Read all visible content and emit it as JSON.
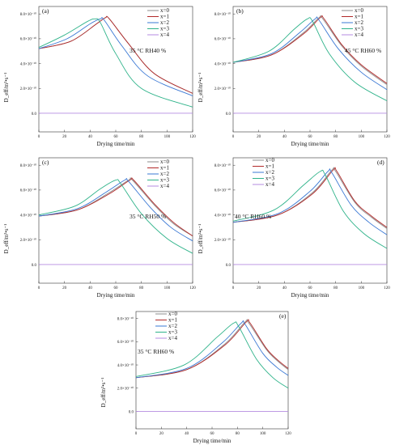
{
  "figure": {
    "x_tick_labels": [
      "0",
      "20",
      "40",
      "60",
      "80",
      "100",
      "120"
    ],
    "y_tick_labels": [
      "0.0",
      "2.0×10⁻¹⁰",
      "4.0×10⁻¹⁰",
      "6.0×10⁻¹⁰",
      "8.0×10⁻¹⁰"
    ],
    "xlabel": "Drying time/min",
    "ylabel": "D_eff/m²•s⁻¹",
    "legend_labels": [
      "x=0",
      "x=1",
      "x=2",
      "x=3",
      "x=4"
    ],
    "series_colors": [
      "#8c8c8c",
      "#b22a2a",
      "#3a78d4",
      "#2fb38a",
      "#b58be0"
    ]
  },
  "chart_data": [
    {
      "panel": "(a)",
      "type": "line",
      "condition": "35 °C RH40 %",
      "xlabel": "Drying time/min",
      "ylabel": "D_eff/m²•s⁻¹",
      "xlim": [
        0,
        120
      ],
      "ylim": [
        -1.5e-10,
        8.6e-10
      ],
      "legend_position": "top-right",
      "series": [
        {
          "name": "x=0",
          "x": [
            0,
            25,
            45,
            52,
            55,
            70,
            90,
            120
          ],
          "y": [
            5.2e-10,
            5.8e-10,
            7.2e-10,
            7.7e-10,
            7.6e-10,
            5.6e-10,
            3.2e-10,
            1.6e-10
          ]
        },
        {
          "name": "x=1",
          "x": [
            0,
            25,
            45,
            52,
            55,
            70,
            90,
            120
          ],
          "y": [
            5.2e-10,
            5.8e-10,
            7.2e-10,
            7.7e-10,
            7.6e-10,
            5.6e-10,
            3.2e-10,
            1.6e-10
          ]
        },
        {
          "name": "x=2",
          "x": [
            0,
            22,
            40,
            48,
            51,
            65,
            85,
            120
          ],
          "y": [
            5.2e-10,
            6e-10,
            7.2e-10,
            7.6e-10,
            7.5e-10,
            5.4e-10,
            3e-10,
            1.4e-10
          ]
        },
        {
          "name": "x=3",
          "x": [
            0,
            20,
            38,
            44,
            48,
            60,
            80,
            120
          ],
          "y": [
            5.3e-10,
            6.3e-10,
            7.4e-10,
            7.6e-10,
            7.3e-10,
            4.8e-10,
            2e-10,
            5e-11
          ]
        },
        {
          "name": "x=4",
          "x": [
            0,
            120
          ],
          "y": [
            0,
            0
          ]
        }
      ]
    },
    {
      "panel": "(b)",
      "type": "line",
      "condition": "45 °C RH60 %",
      "xlabel": "Drying time/min",
      "ylabel": "D_eff/m²•s⁻¹",
      "xlim": [
        0,
        120
      ],
      "ylim": [
        -1.5e-10,
        8.6e-10
      ],
      "legend_position": "top-right",
      "series": [
        {
          "name": "x=0",
          "x": [
            0,
            30,
            55,
            67,
            70,
            85,
            100,
            120
          ],
          "y": [
            4.1e-10,
            4.7e-10,
            6.5e-10,
            7.7e-10,
            7.6e-10,
            5.4e-10,
            3.8e-10,
            2.3e-10
          ]
        },
        {
          "name": "x=1",
          "x": [
            0,
            30,
            55,
            68,
            71,
            85,
            100,
            120
          ],
          "y": [
            4.1e-10,
            4.7e-10,
            6.4e-10,
            7.7e-10,
            7.6e-10,
            5.5e-10,
            3.9e-10,
            2.4e-10
          ]
        },
        {
          "name": "x=2",
          "x": [
            0,
            30,
            52,
            64,
            67,
            82,
            100,
            120
          ],
          "y": [
            4.1e-10,
            4.8e-10,
            6.5e-10,
            7.6e-10,
            7.5e-10,
            5.2e-10,
            3.3e-10,
            1.9e-10
          ]
        },
        {
          "name": "x=3",
          "x": [
            0,
            28,
            48,
            58,
            62,
            75,
            95,
            120
          ],
          "y": [
            4.1e-10,
            5e-10,
            6.8e-10,
            7.6e-10,
            7.4e-10,
            4.8e-10,
            2.5e-10,
            1e-10
          ]
        },
        {
          "name": "x=4",
          "x": [
            0,
            120
          ],
          "y": [
            0,
            0
          ]
        }
      ]
    },
    {
      "panel": "(c)",
      "type": "line",
      "condition": "35 °C RH50 %",
      "xlabel": "Drying time/min",
      "ylabel": "D_eff/m²•s⁻¹",
      "xlim": [
        0,
        120
      ],
      "ylim": [
        -1.5e-10,
        8.6e-10
      ],
      "legend_position": "top-right",
      "series": [
        {
          "name": "x=0",
          "x": [
            0,
            30,
            55,
            70,
            73,
            90,
            105,
            120
          ],
          "y": [
            3.9e-10,
            4.4e-10,
            5.8e-10,
            6.8e-10,
            6.8e-10,
            4.8e-10,
            3.3e-10,
            2.3e-10
          ]
        },
        {
          "name": "x=1",
          "x": [
            0,
            30,
            55,
            71,
            74,
            90,
            105,
            120
          ],
          "y": [
            3.9e-10,
            4.4e-10,
            5.7e-10,
            6.8e-10,
            6.8e-10,
            4.9e-10,
            3.4e-10,
            2.3e-10
          ]
        },
        {
          "name": "x=2",
          "x": [
            0,
            30,
            52,
            67,
            70,
            87,
            103,
            120
          ],
          "y": [
            3.9e-10,
            4.5e-10,
            5.8e-10,
            6.8e-10,
            6.7e-10,
            4.6e-10,
            3e-10,
            1.9e-10
          ]
        },
        {
          "name": "x=3",
          "x": [
            0,
            28,
            48,
            60,
            64,
            80,
            100,
            120
          ],
          "y": [
            4e-10,
            4.7e-10,
            6.1e-10,
            6.8e-10,
            6.5e-10,
            4.1e-10,
            2.1e-10,
            9e-11
          ]
        },
        {
          "name": "x=4",
          "x": [
            0,
            120
          ],
          "y": [
            0,
            0
          ]
        }
      ]
    },
    {
      "panel": "(d)",
      "type": "line",
      "condition": "40 °C RH60 %",
      "xlabel": "Drying time/min",
      "ylabel": "D_eff/m²•s⁻¹",
      "xlim": [
        0,
        120
      ],
      "ylim": [
        -1.5e-10,
        8.6e-10
      ],
      "legend_position": "top-left",
      "series": [
        {
          "name": "x=0",
          "x": [
            0,
            35,
            62,
            77,
            80,
            95,
            108,
            120
          ],
          "y": [
            3.4e-10,
            4e-10,
            5.8e-10,
            7.6e-10,
            7.5e-10,
            5e-10,
            3.8e-10,
            2.9e-10
          ]
        },
        {
          "name": "x=1",
          "x": [
            0,
            35,
            62,
            78,
            81,
            95,
            108,
            120
          ],
          "y": [
            3.4e-10,
            4e-10,
            5.7e-10,
            7.6e-10,
            7.5e-10,
            5.1e-10,
            3.9e-10,
            3e-10
          ]
        },
        {
          "name": "x=2",
          "x": [
            0,
            35,
            60,
            74,
            77,
            92,
            106,
            120
          ],
          "y": [
            3.4e-10,
            4.1e-10,
            5.9e-10,
            7.5e-10,
            7.4e-10,
            4.8e-10,
            3.4e-10,
            2.4e-10
          ]
        },
        {
          "name": "x=3",
          "x": [
            0,
            32,
            55,
            68,
            72,
            86,
            102,
            120
          ],
          "y": [
            3.5e-10,
            4.4e-10,
            6.4e-10,
            7.5e-10,
            7.2e-10,
            4.3e-10,
            2.5e-10,
            1.3e-10
          ]
        },
        {
          "name": "x=4",
          "x": [
            0,
            120
          ],
          "y": [
            0,
            0
          ]
        }
      ]
    },
    {
      "panel": "(e)",
      "type": "line",
      "condition": "35 °C RH60 %",
      "xlabel": "Drying time/min",
      "ylabel": "D_eff/m²•s⁻¹",
      "xlim": [
        0,
        120
      ],
      "ylim": [
        -1.5e-10,
        8.6e-10
      ],
      "legend_position": "top-left",
      "series": [
        {
          "name": "x=0",
          "x": [
            0,
            40,
            70,
            86,
            89,
            103,
            112,
            120
          ],
          "y": [
            2.9e-10,
            3.6e-10,
            5.8e-10,
            7.7e-10,
            7.6e-10,
            5.3e-10,
            4.3e-10,
            3.6e-10
          ]
        },
        {
          "name": "x=1",
          "x": [
            0,
            40,
            70,
            87,
            90,
            103,
            112,
            120
          ],
          "y": [
            2.9e-10,
            3.6e-10,
            5.7e-10,
            7.7e-10,
            7.6e-10,
            5.4e-10,
            4.4e-10,
            3.7e-10
          ]
        },
        {
          "name": "x=2",
          "x": [
            0,
            40,
            68,
            83,
            86,
            100,
            111,
            120
          ],
          "y": [
            2.9e-10,
            3.7e-10,
            5.9e-10,
            7.6e-10,
            7.5e-10,
            5e-10,
            3.8e-10,
            3.1e-10
          ]
        },
        {
          "name": "x=3",
          "x": [
            0,
            38,
            64,
            77,
            81,
            95,
            108,
            120
          ],
          "y": [
            3e-10,
            4e-10,
            6.4e-10,
            7.6e-10,
            7.3e-10,
            4.5e-10,
            2.9e-10,
            2e-10
          ]
        },
        {
          "name": "x=4",
          "x": [
            0,
            120
          ],
          "y": [
            0,
            0
          ]
        }
      ]
    }
  ]
}
